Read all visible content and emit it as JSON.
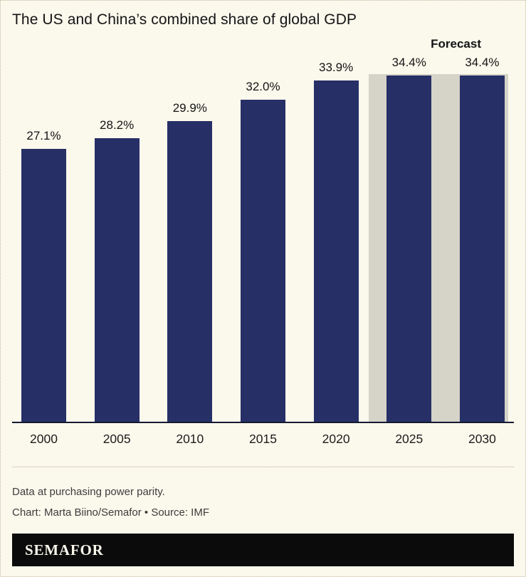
{
  "page": {
    "title": "The US and China’s combined share of global GDP",
    "forecast_label": "Forecast",
    "notes": {
      "methodology": "Data at purchasing power parity.",
      "credit": "Chart: Marta Biino/Semafor • Source: IMF"
    },
    "logo": "SEMAFOR",
    "colors": {
      "background": "#fbf8ec",
      "bar": "#262f66",
      "forecast_band": "#d6d3c8",
      "axis": "#141a33"
    }
  },
  "chart_data": {
    "type": "bar",
    "title": "The US and China’s combined share of global GDP",
    "categories": [
      "2000",
      "2005",
      "2010",
      "2015",
      "2020",
      "2025",
      "2030"
    ],
    "values": [
      27.1,
      28.2,
      29.9,
      32.0,
      33.9,
      34.4,
      34.4
    ],
    "data_labels": [
      "27.1%",
      "28.2%",
      "29.9%",
      "32.0%",
      "33.9%",
      "34.4%",
      "34.4%"
    ],
    "forecast_categories": [
      "2025",
      "2030"
    ],
    "annotation": "Forecast",
    "xlabel": "",
    "ylabel": "",
    "ylim": [
      0,
      34.4
    ],
    "grid": false,
    "legend": "none",
    "bar_color": "#262f66",
    "forecast_band_color": "#d6d3c8"
  }
}
